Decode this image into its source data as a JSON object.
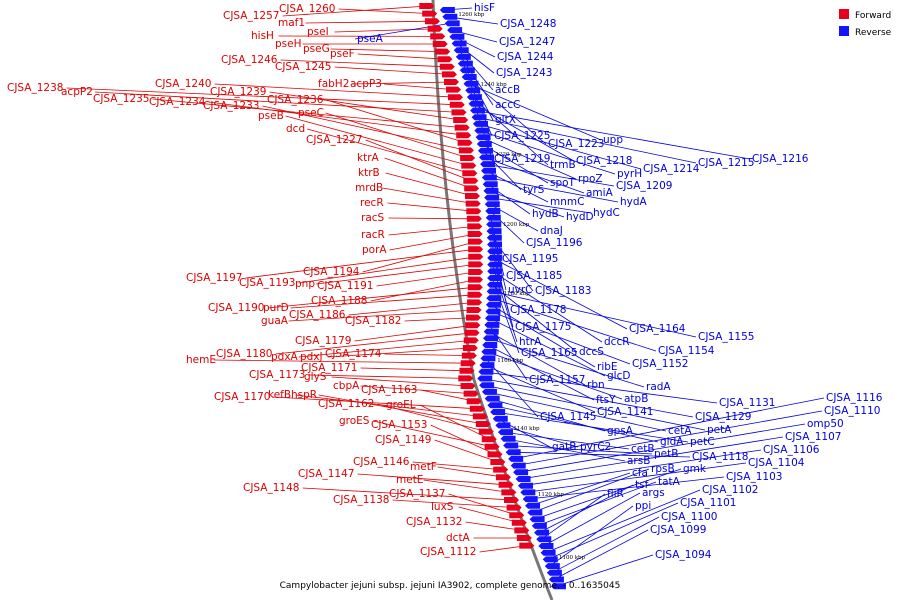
{
  "caption": "Campylobacter jejuni subsp. jejuni IA3902, complete genome. - 0..1635045",
  "legend": {
    "forward": {
      "label": "Forward",
      "color": "#e8001c"
    },
    "reverse": {
      "label": "Reverse",
      "color": "#1414ff"
    }
  },
  "ticks": [
    "1260 kbp",
    "1240 kbp",
    "1220 kbp",
    "1200 kbp",
    "1180 kbp",
    "1160 kbp",
    "1140 kbp",
    "1120 kbp",
    "1100 kbp"
  ],
  "forward_labels": [
    "CJSA_1257",
    "CJSA_1260",
    "maf1",
    "pseI",
    "hisH",
    "pseH",
    "pseG",
    "pseF",
    "CJSA_1246",
    "CJSA_1245",
    "fabH2",
    "acpP3",
    "CJSA_1240",
    "CJSA_1238",
    "acpP2",
    "CJSA_1239",
    "CJSA_1235",
    "CJSA_1234",
    "CJSA_1236",
    "CJSA_1233",
    "pseC",
    "pseB",
    "dcd",
    "CJSA_1227",
    "ktrA",
    "ktrB",
    "mrdB",
    "recR",
    "racS",
    "racR",
    "porA",
    "CJSA_1194",
    "CJSA_1197",
    "CJSA_1193",
    "pnp",
    "CJSA_1191",
    "CJSA_1188",
    "CJSA_1190",
    "purD",
    "CJSA_1186",
    "guaA",
    "CJSA_1182",
    "CJSA_1179",
    "CJSA_1180",
    "pdxA",
    "pdxJ",
    "CJSA_1174",
    "hemE",
    "CJSA_1171",
    "CJSA_1173",
    "glyS",
    "cbpA",
    "CJSA_1163",
    "CJSA_1170",
    "kefB",
    "hspR",
    "CJSA_1162",
    "groEL",
    "groES",
    "CJSA_1153",
    "CJSA_1149",
    "CJSA_1146",
    "metF",
    "CJSA_1147",
    "metE",
    "CJSA_1148",
    "CJSA_1138",
    "CJSA_1137",
    "luxS",
    "CJSA_1132",
    "dctA",
    "CJSA_1112"
  ],
  "reverse_labels": [
    "hisF",
    "CJSA_1248",
    "pseA",
    "CJSA_1247",
    "CJSA_1244",
    "CJSA_1243",
    "accB",
    "accC",
    "gltX",
    "CJSA_1225",
    "CJSA_1223",
    "upp",
    "CJSA_1219",
    "trmB",
    "CJSA_1218",
    "CJSA_1216",
    "CJSA_1215",
    "CJSA_1214",
    "pyrH",
    "rpoZ",
    "spoT",
    "tyrS",
    "amiA",
    "CJSA_1209",
    "mnmC",
    "hydA",
    "hydB",
    "hydD",
    "hydC",
    "dnaJ",
    "CJSA_1196",
    "CJSA_1195",
    "CJSA_1185",
    "uvrC",
    "CJSA_1183",
    "CJSA_1178",
    "CJSA_1175",
    "CJSA_1164",
    "htrA",
    "dccR",
    "CJSA_1165",
    "dccS",
    "CJSA_1155",
    "CJSA_1154",
    "ribE",
    "CJSA_1152",
    "glcD",
    "CJSA_1157",
    "rbn",
    "radA",
    "ftsY",
    "atpB",
    "CJSA_1145",
    "CJSA_1141",
    "CJSA_1131",
    "CJSA_1129",
    "petA",
    "cetA",
    "gpsA",
    "gidA",
    "petC",
    "gatB",
    "pyrC2",
    "cetB",
    "arsB",
    "petB",
    "CJSA_1118",
    "CJSA_1116",
    "CJSA_1110",
    "omp50",
    "CJSA_1107",
    "CJSA_1106",
    "CJSA_1104",
    "CJSA_1103",
    "cfa",
    "rpsB",
    "gmk",
    "tatA",
    "tsf",
    "fliR",
    "args",
    "CJSA_1102",
    "CJSA_1101",
    "ppi",
    "CJSA_1100",
    "CJSA_1099",
    "CJSA_1094"
  ]
}
